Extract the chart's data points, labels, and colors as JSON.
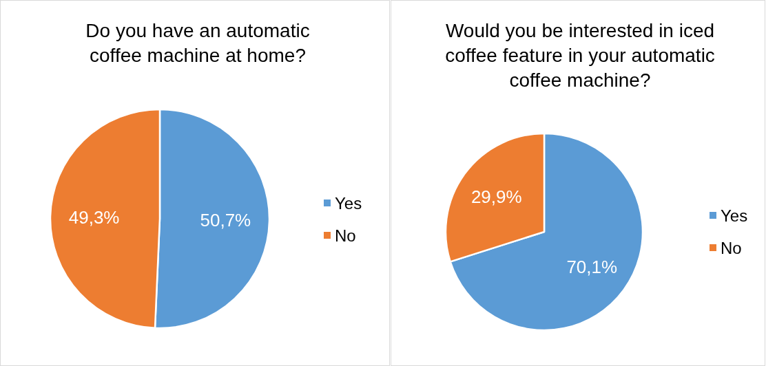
{
  "chart_data": [
    {
      "type": "pie",
      "title": "Do you have an automatic coffee machine at home?",
      "categories": [
        "Yes",
        "No"
      ],
      "values": [
        50.7,
        49.3
      ],
      "value_labels": [
        "50,7%",
        "49,3%"
      ],
      "colors": [
        "#5b9bd5",
        "#ed7d31"
      ],
      "legend": "right"
    },
    {
      "type": "pie",
      "title": "Would you be interested in iced coffee feature in your automatic coffee machine?",
      "categories": [
        "Yes",
        "No"
      ],
      "values": [
        70.1,
        29.9
      ],
      "value_labels": [
        "70,1%",
        "29,9%"
      ],
      "colors": [
        "#5b9bd5",
        "#ed7d31"
      ],
      "legend": "right"
    }
  ]
}
